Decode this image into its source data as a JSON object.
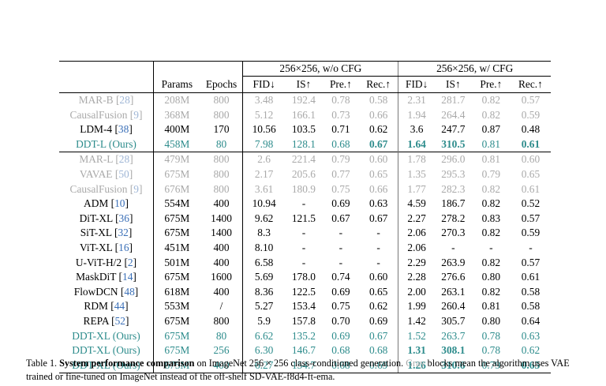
{
  "table": {
    "group_headers": {
      "wo_cfg": "256×256, w/o CFG",
      "w_cfg": "256×256, w/ CFG"
    },
    "column_headers": [
      "Params",
      "Epochs",
      "FID↓",
      "IS↑",
      "Pre.↑",
      "Rec.↑",
      "FID↓",
      "IS↑",
      "Pre.↑",
      "Rec.↑"
    ],
    "sections": [
      {
        "rows": [
          {
            "method": "MAR-B",
            "cite": "28",
            "style": "gray",
            "values": [
              "208M",
              "800",
              "3.48",
              "192.4",
              "0.78",
              "0.58",
              "2.31",
              "281.7",
              "0.82",
              "0.57"
            ],
            "bold": []
          },
          {
            "method": "CausalFusion",
            "cite": "9",
            "style": "gray",
            "values": [
              "368M",
              "800",
              "5.12",
              "166.1",
              "0.73",
              "0.66",
              "1.94",
              "264.4",
              "0.82",
              "0.59"
            ],
            "bold": []
          },
          {
            "method": "LDM-4",
            "cite": "38",
            "style": "normal",
            "values": [
              "400M",
              "170",
              "10.56",
              "103.5",
              "0.71",
              "0.62",
              "3.6",
              "247.7",
              "0.87",
              "0.48"
            ],
            "bold": []
          },
          {
            "method": "DDT-L (Ours)",
            "cite": "",
            "style": "teal",
            "values": [
              "458M",
              "80",
              "7.98",
              "128.1",
              "0.68",
              "0.67",
              "1.64",
              "310.5",
              "0.81",
              "0.61"
            ],
            "bold": [
              5,
              6,
              7,
              9
            ]
          }
        ]
      },
      {
        "rows": [
          {
            "method": "MAR-L",
            "cite": "28",
            "style": "gray",
            "values": [
              "479M",
              "800",
              "2.6",
              "221.4",
              "0.79",
              "0.60",
              "1.78",
              "296.0",
              "0.81",
              "0.60"
            ],
            "bold": []
          },
          {
            "method": "VAVAE",
            "cite": "50",
            "style": "gray",
            "values": [
              "675M",
              "800",
              "2.17",
              "205.6",
              "0.77",
              "0.65",
              "1.35",
              "295.3",
              "0.79",
              "0.65"
            ],
            "bold": []
          },
          {
            "method": "CausalFusion",
            "cite": "9",
            "style": "gray",
            "values": [
              "676M",
              "800",
              "3.61",
              "180.9",
              "0.75",
              "0.66",
              "1.77",
              "282.3",
              "0.82",
              "0.61"
            ],
            "bold": []
          },
          {
            "method": "ADM",
            "cite": "10",
            "style": "normal",
            "values": [
              "554M",
              "400",
              "10.94",
              "-",
              "0.69",
              "0.63",
              "4.59",
              "186.7",
              "0.82",
              "0.52"
            ],
            "bold": []
          },
          {
            "method": "DiT-XL",
            "cite": "36",
            "style": "normal",
            "values": [
              "675M",
              "1400",
              "9.62",
              "121.5",
              "0.67",
              "0.67",
              "2.27",
              "278.2",
              "0.83",
              "0.57"
            ],
            "bold": []
          },
          {
            "method": "SiT-XL",
            "cite": "32",
            "style": "normal",
            "values": [
              "675M",
              "1400",
              "8.3",
              "-",
              "-",
              "-",
              "2.06",
              "270.3",
              "0.82",
              "0.59"
            ],
            "bold": []
          },
          {
            "method": "ViT-XL",
            "cite": "16",
            "style": "normal",
            "values": [
              "451M",
              "400",
              "8.10",
              "-",
              "-",
              "-",
              "2.06",
              "-",
              "-",
              "-"
            ],
            "bold": []
          },
          {
            "method": "U-ViT-H/2",
            "cite": "2",
            "style": "normal",
            "values": [
              "501M",
              "400",
              "6.58",
              "-",
              "-",
              "-",
              "2.29",
              "263.9",
              "0.82",
              "0.57"
            ],
            "bold": []
          },
          {
            "method": "MaskDiT",
            "cite": "14",
            "style": "normal",
            "values": [
              "675M",
              "1600",
              "5.69",
              "178.0",
              "0.74",
              "0.60",
              "2.28",
              "276.6",
              "0.80",
              "0.61"
            ],
            "bold": []
          },
          {
            "method": "FlowDCN",
            "cite": "48",
            "style": "normal",
            "values": [
              "618M",
              "400",
              "8.36",
              "122.5",
              "0.69",
              "0.65",
              "2.00",
              "263.1",
              "0.82",
              "0.58"
            ],
            "bold": []
          },
          {
            "method": "RDM",
            "cite": "44",
            "style": "normal",
            "values": [
              "553M",
              "/",
              "5.27",
              "153.4",
              "0.75",
              "0.62",
              "1.99",
              "260.4",
              "0.81",
              "0.58"
            ],
            "bold": []
          },
          {
            "method": "REPA",
            "cite": "52",
            "style": "normal",
            "values": [
              "675M",
              "800",
              "5.9",
              "157.8",
              "0.70",
              "0.69",
              "1.42",
              "305.7",
              "0.80",
              "0.64"
            ],
            "bold": []
          },
          {
            "method": "DDT-XL (Ours)",
            "cite": "",
            "style": "teal",
            "values": [
              "675M",
              "80",
              "6.62",
              "135.2",
              "0.69",
              "0.67",
              "1.52",
              "263.7",
              "0.78",
              "0.63"
            ],
            "bold": []
          },
          {
            "method": "DDT-XL (Ours)",
            "cite": "",
            "style": "teal",
            "values": [
              "675M",
              "256",
              "6.30",
              "146.7",
              "0.68",
              "0.68",
              "1.31",
              "308.1",
              "0.78",
              "0.62"
            ],
            "bold": [
              6,
              7
            ]
          },
          {
            "method": "DDT-XL (Ours)",
            "cite": "",
            "style": "teal",
            "values": [
              "675M",
              "400",
              "6.27",
              "154.7",
              "0.68",
              "0.69",
              "1.26",
              "310.6",
              "0.79",
              "0.65"
            ],
            "bold": [
              6,
              7,
              9
            ]
          }
        ]
      }
    ]
  },
  "caption": {
    "label": "Table 1. ",
    "bold": "System performance comparison",
    "text1": " on ImageNet 256 × 256 class-conditioned generation. ",
    "gray": "Gray",
    "text2": " blocks mean the algorithm uses VAE trained or fine-tuned on ImageNet instead of the off-shelf SD-VAE-f8d4-ft-ema."
  },
  "colors": {
    "gray": "#a9a9a9",
    "teal": "#2d8c8c",
    "cite": "#3a6fb7"
  }
}
